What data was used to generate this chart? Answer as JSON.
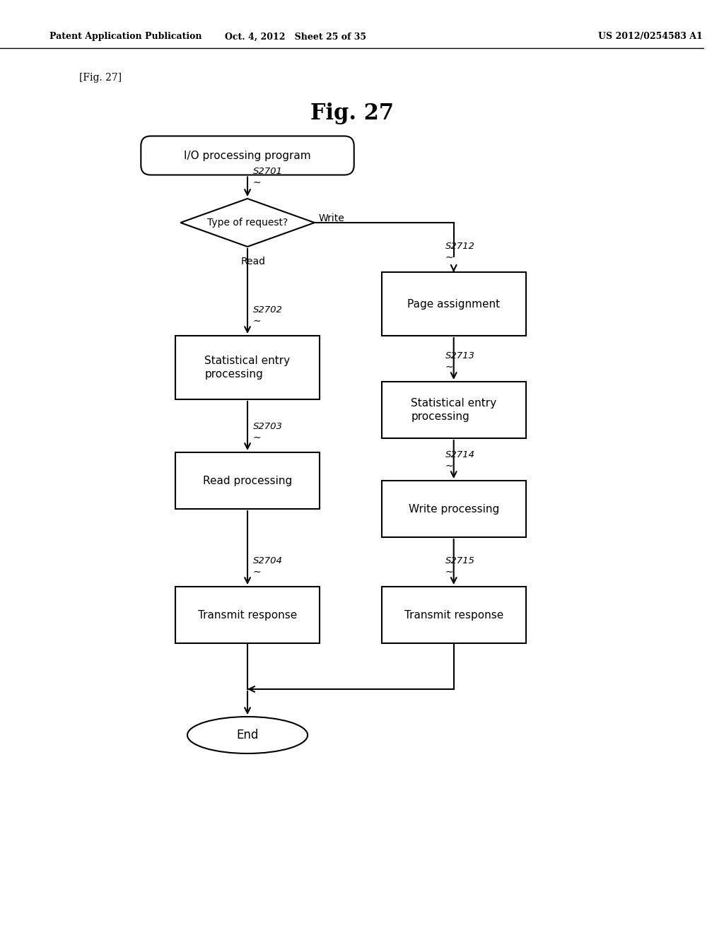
{
  "title": "Fig. 27",
  "header_left": "Patent Application Publication",
  "header_mid": "Oct. 4, 2012   Sheet 25 of 35",
  "header_right": "US 2012/0254583 A1",
  "fig_label": "[Fig. 27]",
  "background_color": "#ffffff"
}
